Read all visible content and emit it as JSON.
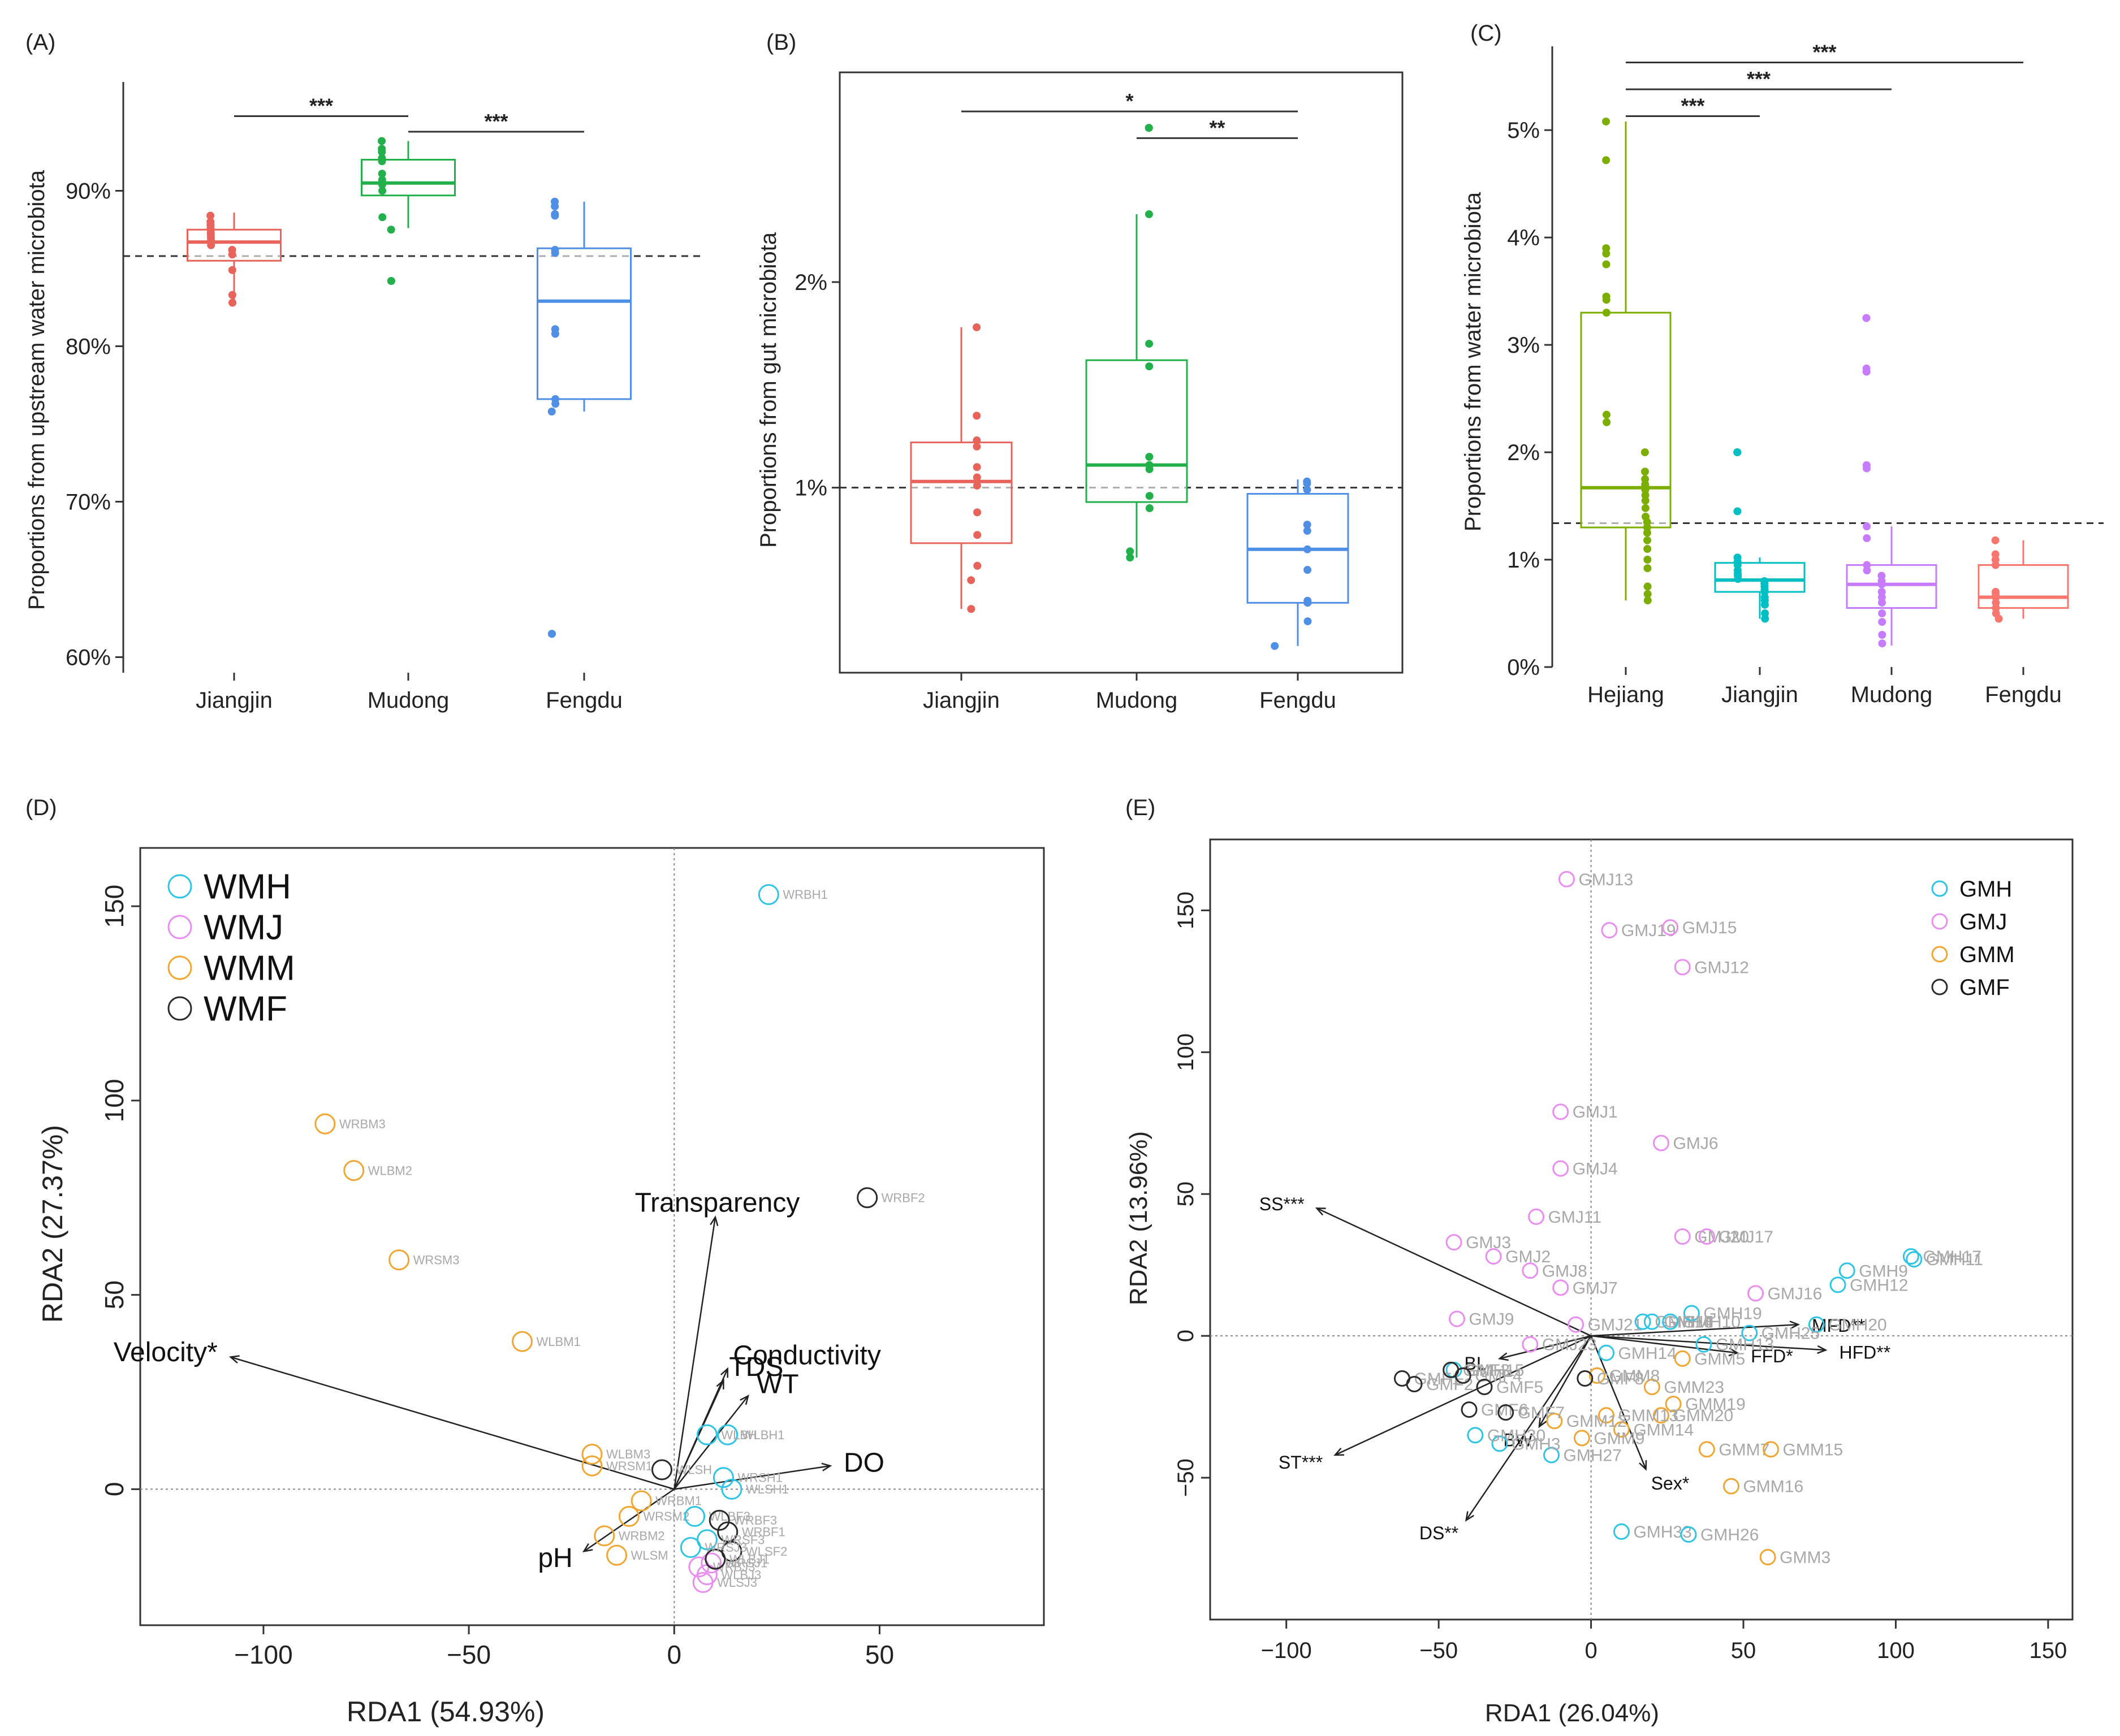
{
  "figure": {
    "background": "#ffffff"
  },
  "chart_data": [
    {
      "panel": "(A)",
      "type": "box",
      "ylabel": "Proportions from upstream water microbiota",
      "ylim": [
        0.59,
        0.97
      ],
      "yticks": [
        {
          "v": 0.6,
          "label": "60%"
        },
        {
          "v": 0.7,
          "label": "70%"
        },
        {
          "v": 0.8,
          "label": "80%"
        },
        {
          "v": 0.9,
          "label": "90%"
        }
      ],
      "reference_line": 0.858,
      "categories": [
        "Jiangjin",
        "Mudong",
        "Fengdu"
      ],
      "colors": [
        "#e8645a",
        "#22b04b",
        "#4f8fe6"
      ],
      "boxes": [
        {
          "q1": 0.855,
          "median": 0.867,
          "q3": 0.875,
          "whisker_low": 0.828,
          "whisker_high": 0.886
        },
        {
          "q1": 0.897,
          "median": 0.905,
          "q3": 0.92,
          "whisker_low": 0.876,
          "whisker_high": 0.932
        },
        {
          "q1": 0.766,
          "median": 0.829,
          "q3": 0.863,
          "whisker_low": 0.758,
          "whisker_high": 0.893
        }
      ],
      "points": [
        [
          0.884,
          0.88,
          0.878,
          0.876,
          0.875,
          0.873,
          0.872,
          0.87,
          0.868,
          0.865,
          0.862,
          0.859,
          0.849,
          0.833,
          0.828
        ],
        [
          0.932,
          0.927,
          0.925,
          0.921,
          0.919,
          0.911,
          0.907,
          0.904,
          0.9,
          0.883,
          0.875,
          0.842,
          0.842
        ],
        [
          0.893,
          0.89,
          0.885,
          0.884,
          0.862,
          0.86,
          0.811,
          0.808,
          0.766,
          0.763,
          0.758,
          0.615,
          0.615
        ]
      ],
      "significance": [
        {
          "from": 0,
          "to": 1,
          "label": "***",
          "y": 0.948
        },
        {
          "from": 1,
          "to": 2,
          "label": "***",
          "y": 0.938
        }
      ]
    },
    {
      "panel": "(B)",
      "type": "box",
      "ylabel": "Proportions from gut microbiota",
      "ylim": [
        0.001,
        0.0302
      ],
      "yticks": [
        {
          "v": 0.01,
          "label": "1%"
        },
        {
          "v": 0.02,
          "label": "2%"
        }
      ],
      "reference_line": 0.01,
      "categories": [
        "Jiangjin",
        "Mudong",
        "Fengdu"
      ],
      "colors": [
        "#e8645a",
        "#22b04b",
        "#4f8fe6"
      ],
      "boxes": [
        {
          "q1": 0.0073,
          "median": 0.0103,
          "q3": 0.0122,
          "whisker_low": 0.0041,
          "whisker_high": 0.0178
        },
        {
          "q1": 0.0093,
          "median": 0.0111,
          "q3": 0.0162,
          "whisker_low": 0.0066,
          "whisker_high": 0.0233
        },
        {
          "q1": 0.0044,
          "median": 0.007,
          "q3": 0.0097,
          "whisker_low": 0.0023,
          "whisker_high": 0.0104
        }
      ],
      "points": [
        [
          0.0178,
          0.0135,
          0.0123,
          0.012,
          0.011,
          0.0105,
          0.0101,
          0.0088,
          0.0077,
          0.0062,
          0.0055,
          0.0041
        ],
        [
          0.0275,
          0.0275,
          0.0233,
          0.017,
          0.0159,
          0.0115,
          0.0111,
          0.0109,
          0.0096,
          0.009,
          0.0069,
          0.0066
        ],
        [
          0.0103,
          0.0102,
          0.0099,
          0.0082,
          0.0079,
          0.007,
          0.006,
          0.0045,
          0.0044,
          0.0035,
          0.0023
        ]
      ],
      "significance": [
        {
          "from": 0,
          "to": 2,
          "label": "*",
          "y": 0.0283
        },
        {
          "from": 1,
          "to": 2,
          "label": "**",
          "y": 0.027
        }
      ]
    },
    {
      "panel": "(C)",
      "type": "box",
      "ylabel": "Proportions from water microbiota",
      "ylim": [
        0.0,
        0.0578
      ],
      "yticks": [
        {
          "v": 0.0,
          "label": "0%"
        },
        {
          "v": 0.01,
          "label": "1%"
        },
        {
          "v": 0.02,
          "label": "2%"
        },
        {
          "v": 0.03,
          "label": "3%"
        },
        {
          "v": 0.04,
          "label": "4%"
        },
        {
          "v": 0.05,
          "label": "5%"
        }
      ],
      "reference_line": 0.0134,
      "categories": [
        "Hejiang",
        "Jiangjin",
        "Mudong",
        "Fengdu"
      ],
      "colors": [
        "#7cae00",
        "#00bfc4",
        "#c77cff",
        "#f8766d"
      ],
      "boxes": [
        {
          "q1": 0.013,
          "median": 0.0167,
          "q3": 0.033,
          "whisker_low": 0.0062,
          "whisker_high": 0.0508
        },
        {
          "q1": 0.007,
          "median": 0.0081,
          "q3": 0.0097,
          "whisker_low": 0.0045,
          "whisker_high": 0.0102
        },
        {
          "q1": 0.0055,
          "median": 0.0077,
          "q3": 0.0095,
          "whisker_low": 0.002,
          "whisker_high": 0.0131
        },
        {
          "q1": 0.0055,
          "median": 0.0065,
          "q3": 0.0095,
          "whisker_low": 0.0045,
          "whisker_high": 0.0118
        }
      ],
      "points": [
        [
          0.0508,
          0.0472,
          0.039,
          0.0385,
          0.0375,
          0.0345,
          0.0342,
          0.033,
          0.0235,
          0.0228,
          0.02,
          0.0182,
          0.0175,
          0.017,
          0.0168,
          0.0165,
          0.016,
          0.0155,
          0.0148,
          0.014,
          0.0135,
          0.013,
          0.0125,
          0.0118,
          0.011,
          0.01,
          0.0092,
          0.0075,
          0.0068,
          0.0062
        ],
        [
          0.02,
          0.02,
          0.0145,
          0.0102,
          0.0098,
          0.0095,
          0.009,
          0.0087,
          0.0085,
          0.0082,
          0.008,
          0.0078,
          0.0075,
          0.0072,
          0.007,
          0.0065,
          0.0062,
          0.0058,
          0.005,
          0.0045
        ],
        [
          0.0325,
          0.0325,
          0.0278,
          0.0275,
          0.0188,
          0.0185,
          0.0131,
          0.012,
          0.0095,
          0.009,
          0.0085,
          0.008,
          0.0077,
          0.007,
          0.0065,
          0.006,
          0.005,
          0.0042,
          0.003,
          0.0022
        ],
        [
          0.0118,
          0.0105,
          0.01,
          0.0095,
          0.007,
          0.0068,
          0.0065,
          0.006,
          0.0055,
          0.005,
          0.0045
        ]
      ],
      "significance": [
        {
          "from": 0,
          "to": 3,
          "label": "***",
          "y": 0.0563
        },
        {
          "from": 0,
          "to": 2,
          "label": "***",
          "y": 0.0538
        },
        {
          "from": 0,
          "to": 1,
          "label": "***",
          "y": 0.0513
        }
      ]
    },
    {
      "panel": "(D)",
      "type": "scatter",
      "xlabel": "RDA1 (54.93%)",
      "ylabel": "RDA2 (27.37%)",
      "xlim": [
        -130,
        90
      ],
      "ylim": [
        -35,
        165
      ],
      "xticks": [
        -100,
        -50,
        0,
        50
      ],
      "yticks": [
        0,
        50,
        100,
        150
      ],
      "legend": [
        {
          "label": "WMH",
          "color": "#2ec4e6"
        },
        {
          "label": "WMJ",
          "color": "#ea8df0"
        },
        {
          "label": "WMM",
          "color": "#f0a630"
        },
        {
          "label": "WMF",
          "color": "#2b2b2b"
        }
      ],
      "points": [
        {
          "label": "WRBH1",
          "x": 23,
          "y": 153,
          "group": 0
        },
        {
          "label": "WRBF2",
          "x": 47,
          "y": 75,
          "group": 3
        },
        {
          "label": "WRBM3",
          "x": -85,
          "y": 94,
          "group": 2
        },
        {
          "label": "WLBM2",
          "x": -78,
          "y": 82,
          "group": 2
        },
        {
          "label": "WRSM3",
          "x": -67,
          "y": 59,
          "group": 2
        },
        {
          "label": "WLBM1",
          "x": -37,
          "y": 38,
          "group": 2
        },
        {
          "label": "WLBH1",
          "x": 13,
          "y": 14,
          "group": 0
        },
        {
          "label": "WLBH",
          "x": 8,
          "y": 14,
          "group": 0
        },
        {
          "label": "WLSH",
          "x": -3,
          "y": 5,
          "group": 3
        },
        {
          "label": "WRSH1",
          "x": 12,
          "y": 3,
          "group": 0
        },
        {
          "label": "WLSH1",
          "x": 14,
          "y": 0,
          "group": 0
        },
        {
          "label": "WLBM3",
          "x": -20,
          "y": 9,
          "group": 2
        },
        {
          "label": "WRSM1",
          "x": -20,
          "y": 6,
          "group": 2
        },
        {
          "label": "WRBM1",
          "x": -8,
          "y": -3,
          "group": 2
        },
        {
          "label": "WRSM2",
          "x": -11,
          "y": -7,
          "group": 2
        },
        {
          "label": "WRBM2",
          "x": -17,
          "y": -12,
          "group": 2
        },
        {
          "label": "WLSM",
          "x": -14,
          "y": -17,
          "group": 2
        },
        {
          "label": "WLBF3",
          "x": 5,
          "y": -7,
          "group": 0
        },
        {
          "label": "WRBF3",
          "x": 11,
          "y": -8,
          "group": 3
        },
        {
          "label": "WRBF1",
          "x": 13,
          "y": -11,
          "group": 3
        },
        {
          "label": "WLSF2",
          "x": 14,
          "y": -16,
          "group": 3
        },
        {
          "label": "WRSF3",
          "x": 8,
          "y": -13,
          "group": 0
        },
        {
          "label": "WRSJ1",
          "x": 9,
          "y": -19,
          "group": 1
        },
        {
          "label": "WRBJ3",
          "x": 6,
          "y": -20,
          "group": 1
        },
        {
          "label": "WLBJ3",
          "x": 8,
          "y": -22,
          "group": 1
        },
        {
          "label": "WLSJ3",
          "x": 7,
          "y": -24,
          "group": 1
        },
        {
          "label": "WLBJ1",
          "x": 10,
          "y": -18,
          "group": 3
        },
        {
          "label": "WRSJ3",
          "x": 4,
          "y": -15,
          "group": 0
        }
      ],
      "arrows": [
        {
          "label": "Transparency",
          "x": 10,
          "y": 70
        },
        {
          "label": "Velocity*",
          "x": -108,
          "y": 34
        },
        {
          "label": "Conductivity",
          "x": 13,
          "y": 31
        },
        {
          "label": "TDS",
          "x": 12,
          "y": 28
        },
        {
          "label": "WT",
          "x": 18,
          "y": 24
        },
        {
          "label": "DO",
          "x": 38,
          "y": 6
        },
        {
          "label": "pH",
          "x": -22,
          "y": -16
        }
      ]
    },
    {
      "panel": "(E)",
      "type": "scatter",
      "xlabel": "RDA1 (26.04%)",
      "ylabel": "RDA2 (13.96%)",
      "xlim": [
        -125,
        158
      ],
      "ylim": [
        -100,
        175
      ],
      "xticks": [
        -100,
        -50,
        0,
        50,
        100,
        150
      ],
      "yticks": [
        -50,
        0,
        50,
        100,
        150
      ],
      "legend": [
        {
          "label": "GMH",
          "color": "#2ec4e6"
        },
        {
          "label": "GMJ",
          "color": "#ea8df0"
        },
        {
          "label": "GMM",
          "color": "#f0a630"
        },
        {
          "label": "GMF",
          "color": "#2b2b2b"
        }
      ],
      "points": [
        {
          "label": "GMJ13",
          "x": -8,
          "y": 161,
          "group": 1
        },
        {
          "label": "GMJ19",
          "x": 6,
          "y": 143,
          "group": 1
        },
        {
          "label": "GMJ15",
          "x": 26,
          "y": 144,
          "group": 1
        },
        {
          "label": "GMJ12",
          "x": 30,
          "y": 130,
          "group": 1
        },
        {
          "label": "GMJ1",
          "x": -10,
          "y": 79,
          "group": 1
        },
        {
          "label": "GMJ6",
          "x": 23,
          "y": 68,
          "group": 1
        },
        {
          "label": "GMJ4",
          "x": -10,
          "y": 59,
          "group": 1
        },
        {
          "label": "GMJ11",
          "x": -18,
          "y": 42,
          "group": 1
        },
        {
          "label": "GMJ20",
          "x": 30,
          "y": 35,
          "group": 1
        },
        {
          "label": "GMJ17",
          "x": 38,
          "y": 35,
          "group": 1
        },
        {
          "label": "GMJ3",
          "x": -45,
          "y": 33,
          "group": 1
        },
        {
          "label": "GMJ2",
          "x": -32,
          "y": 28,
          "group": 1
        },
        {
          "label": "GMJ8",
          "x": -20,
          "y": 23,
          "group": 1
        },
        {
          "label": "GMJ7",
          "x": -10,
          "y": 17,
          "group": 1
        },
        {
          "label": "GMJ16",
          "x": 54,
          "y": 15,
          "group": 1
        },
        {
          "label": "GMJ9",
          "x": -44,
          "y": 6,
          "group": 1
        },
        {
          "label": "GMJ21",
          "x": -5,
          "y": 4,
          "group": 1
        },
        {
          "label": "GMJ23",
          "x": -20,
          "y": -3,
          "group": 1
        },
        {
          "label": "GMH9",
          "x": 84,
          "y": 23,
          "group": 0
        },
        {
          "label": "GMH11",
          "x": 106,
          "y": 27,
          "group": 0
        },
        {
          "label": "GMH17",
          "x": 105,
          "y": 28,
          "group": 0
        },
        {
          "label": "GMH12",
          "x": 81,
          "y": 18,
          "group": 0
        },
        {
          "label": "GMH20",
          "x": 74,
          "y": 4,
          "group": 0
        },
        {
          "label": "GMH4",
          "x": 20,
          "y": 5,
          "group": 0
        },
        {
          "label": "GMH19",
          "x": 33,
          "y": 8,
          "group": 0
        },
        {
          "label": "GMH18",
          "x": 17,
          "y": 5,
          "group": 0
        },
        {
          "label": "GMH10",
          "x": 26,
          "y": 5,
          "group": 0
        },
        {
          "label": "GMH25",
          "x": 52,
          "y": 1,
          "group": 0
        },
        {
          "label": "GMH14",
          "x": 5,
          "y": -6,
          "group": 0
        },
        {
          "label": "GMH13",
          "x": 37,
          "y": -3,
          "group": 0
        },
        {
          "label": "GMH27",
          "x": -13,
          "y": -42,
          "group": 0
        },
        {
          "label": "GMH33",
          "x": 10,
          "y": -69,
          "group": 0
        },
        {
          "label": "GMH26",
          "x": 32,
          "y": -70,
          "group": 0
        },
        {
          "label": "GMH3",
          "x": -30,
          "y": -38,
          "group": 0
        },
        {
          "label": "GMH30",
          "x": -38,
          "y": -35,
          "group": 0
        },
        {
          "label": "GMH15",
          "x": -45,
          "y": -12,
          "group": 0
        },
        {
          "label": "GMM5",
          "x": 30,
          "y": -8,
          "group": 2
        },
        {
          "label": "GMM23",
          "x": 20,
          "y": -18,
          "group": 2
        },
        {
          "label": "GMM19",
          "x": 27,
          "y": -24,
          "group": 2
        },
        {
          "label": "GMM20",
          "x": 23,
          "y": -28,
          "group": 2
        },
        {
          "label": "GMM13",
          "x": 5,
          "y": -28,
          "group": 2
        },
        {
          "label": "GMM14",
          "x": 10,
          "y": -33,
          "group": 2
        },
        {
          "label": "GMM12",
          "x": -12,
          "y": -30,
          "group": 2
        },
        {
          "label": "GMM9",
          "x": -3,
          "y": -36,
          "group": 2
        },
        {
          "label": "GMM7",
          "x": 38,
          "y": -40,
          "group": 2
        },
        {
          "label": "GMM15",
          "x": 59,
          "y": -40,
          "group": 2
        },
        {
          "label": "GMM16",
          "x": 46,
          "y": -53,
          "group": 2
        },
        {
          "label": "GMM3",
          "x": 58,
          "y": -78,
          "group": 2
        },
        {
          "label": "GMM8",
          "x": 2,
          "y": -14,
          "group": 2
        },
        {
          "label": "GMF1",
          "x": -62,
          "y": -15,
          "group": 3
        },
        {
          "label": "GMF2",
          "x": -58,
          "y": -17,
          "group": 3
        },
        {
          "label": "GMF3",
          "x": -46,
          "y": -12,
          "group": 3
        },
        {
          "label": "GMF4",
          "x": -42,
          "y": -14,
          "group": 3
        },
        {
          "label": "GMF5",
          "x": -35,
          "y": -18,
          "group": 3
        },
        {
          "label": "GMF6",
          "x": -40,
          "y": -26,
          "group": 3
        },
        {
          "label": "GMF7",
          "x": -28,
          "y": -27,
          "group": 3
        },
        {
          "label": "GMF8",
          "x": -2,
          "y": -15,
          "group": 3
        }
      ],
      "arrows": [
        {
          "label": "SS***",
          "x": -90,
          "y": 45
        },
        {
          "label": "ST***",
          "x": -84,
          "y": -42
        },
        {
          "label": "DS**",
          "x": -41,
          "y": -65
        },
        {
          "label": "BW",
          "x": -17,
          "y": -32
        },
        {
          "label": "BL",
          "x": -30,
          "y": -8
        },
        {
          "label": "Sex*",
          "x": 18,
          "y": -47
        },
        {
          "label": "MFD**",
          "x": 68,
          "y": 4
        },
        {
          "label": "FFD*",
          "x": 48,
          "y": -6
        },
        {
          "label": "HFD**",
          "x": 77,
          "y": -5
        }
      ]
    }
  ]
}
